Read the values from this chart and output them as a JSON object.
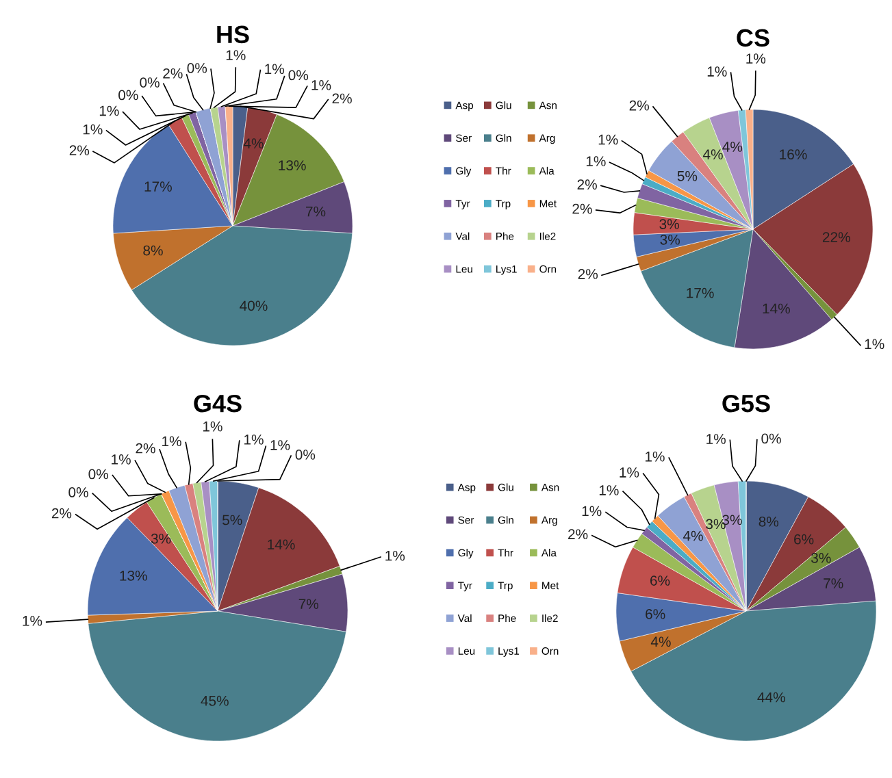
{
  "chart_data": [
    {
      "type": "pie",
      "title": "HS",
      "legend": "right",
      "categories": [
        "Asp",
        "Glu",
        "Asn",
        "Ser",
        "Gln",
        "Arg",
        "Gly",
        "Thr",
        "Ala",
        "Tyr",
        "Trp",
        "Met",
        "Val",
        "Phe",
        "Ile2",
        "Leu",
        "Lys1",
        "Orn"
      ],
      "values": [
        2,
        4,
        13,
        7,
        40,
        8,
        17,
        2,
        1,
        1,
        0,
        0,
        2,
        0,
        1,
        1,
        0,
        1
      ],
      "value_labels": [
        "2%",
        "4%",
        "13%",
        "7%",
        "40%",
        "8%",
        "17%",
        "2%",
        "1%",
        "1%",
        "0%",
        "0%",
        "2%",
        "0%",
        "1%",
        "1%",
        "0%",
        "1%"
      ],
      "colors": [
        "#4a5f8a",
        "#8b3a3a",
        "#76923c",
        "#5f497a",
        "#4a7f8c",
        "#c0712d",
        "#4f6fad",
        "#c0504d",
        "#9bbb59",
        "#8064a2",
        "#4bacc6",
        "#f79646",
        "#8fa2d4",
        "#d9817f",
        "#b7d38e",
        "#a88fc4",
        "#7fc6da",
        "#f9b08a"
      ]
    },
    {
      "type": "pie",
      "title": "CS",
      "categories": [
        null,
        null,
        null,
        null,
        null,
        null,
        null,
        null,
        null,
        null,
        null,
        null,
        null,
        null,
        null,
        null,
        null,
        null
      ],
      "values": [
        16,
        22,
        1,
        14,
        17,
        2,
        3,
        3,
        2,
        2,
        1,
        1,
        5,
        2,
        4,
        4,
        1,
        1
      ],
      "value_labels": [
        "16%",
        "22%",
        "1%",
        "14%",
        "17%",
        "2%",
        "3%",
        "3%",
        "2%",
        "2%",
        "1%",
        "1%",
        "5%",
        "2%",
        "4%",
        "4%",
        "1%",
        "1%"
      ],
      "colors": [
        "#4a5f8a",
        "#8b3a3a",
        "#76923c",
        "#5f497a",
        "#4a7f8c",
        "#c0712d",
        "#4f6fad",
        "#c0504d",
        "#9bbb59",
        "#8064a2",
        "#4bacc6",
        "#f79646",
        "#8fa2d4",
        "#d9817f",
        "#b7d38e",
        "#a88fc4",
        "#7fc6da",
        "#f9b08a"
      ]
    },
    {
      "type": "pie",
      "title": "G4S",
      "legend": "right",
      "categories": [
        "Asp",
        "Glu",
        "Asn",
        "Ser",
        "Gln",
        "Arg",
        "Gly",
        "Thr",
        "Ala",
        "Tyr",
        "Trp",
        "Met",
        "Val",
        "Phe",
        "Ile2",
        "Leu",
        "Lys1",
        "Orn"
      ],
      "values": [
        5,
        14,
        1,
        7,
        45,
        1,
        13,
        3,
        2,
        0,
        0,
        1,
        2,
        1,
        1,
        1,
        1,
        0
      ],
      "value_labels": [
        "5%",
        "14%",
        "1%",
        "7%",
        "45%",
        "1%",
        "13%",
        "3%",
        "2%",
        "0%",
        "0%",
        "1%",
        "2%",
        "1%",
        "1%",
        "1%",
        "1%",
        "0%"
      ],
      "colors": [
        "#4a5f8a",
        "#8b3a3a",
        "#76923c",
        "#5f497a",
        "#4a7f8c",
        "#c0712d",
        "#4f6fad",
        "#c0504d",
        "#9bbb59",
        "#8064a2",
        "#4bacc6",
        "#f79646",
        "#8fa2d4",
        "#d9817f",
        "#b7d38e",
        "#a88fc4",
        "#7fc6da",
        "#f9b08a"
      ]
    },
    {
      "type": "pie",
      "title": "G5S",
      "categories": [
        null,
        null,
        null,
        null,
        null,
        null,
        null,
        null,
        null,
        null,
        null,
        null,
        null,
        null,
        null,
        null,
        null,
        null
      ],
      "values": [
        8,
        6,
        3,
        7,
        44,
        4,
        6,
        6,
        2,
        1,
        1,
        1,
        4,
        1,
        3,
        3,
        1,
        0
      ],
      "value_labels": [
        "8%",
        "6%",
        "3%",
        "7%",
        "44%",
        "4%",
        "6%",
        "6%",
        "2%",
        "1%",
        "1%",
        "1%",
        "4%",
        "1%",
        "3%",
        "3%",
        "1%",
        "0%"
      ],
      "colors": [
        "#4a5f8a",
        "#8b3a3a",
        "#76923c",
        "#5f497a",
        "#4a7f8c",
        "#c0712d",
        "#4f6fad",
        "#c0504d",
        "#9bbb59",
        "#8064a2",
        "#4bacc6",
        "#f79646",
        "#8fa2d4",
        "#d9817f",
        "#b7d38e",
        "#a88fc4",
        "#7fc6da",
        "#f9b08a"
      ]
    }
  ]
}
